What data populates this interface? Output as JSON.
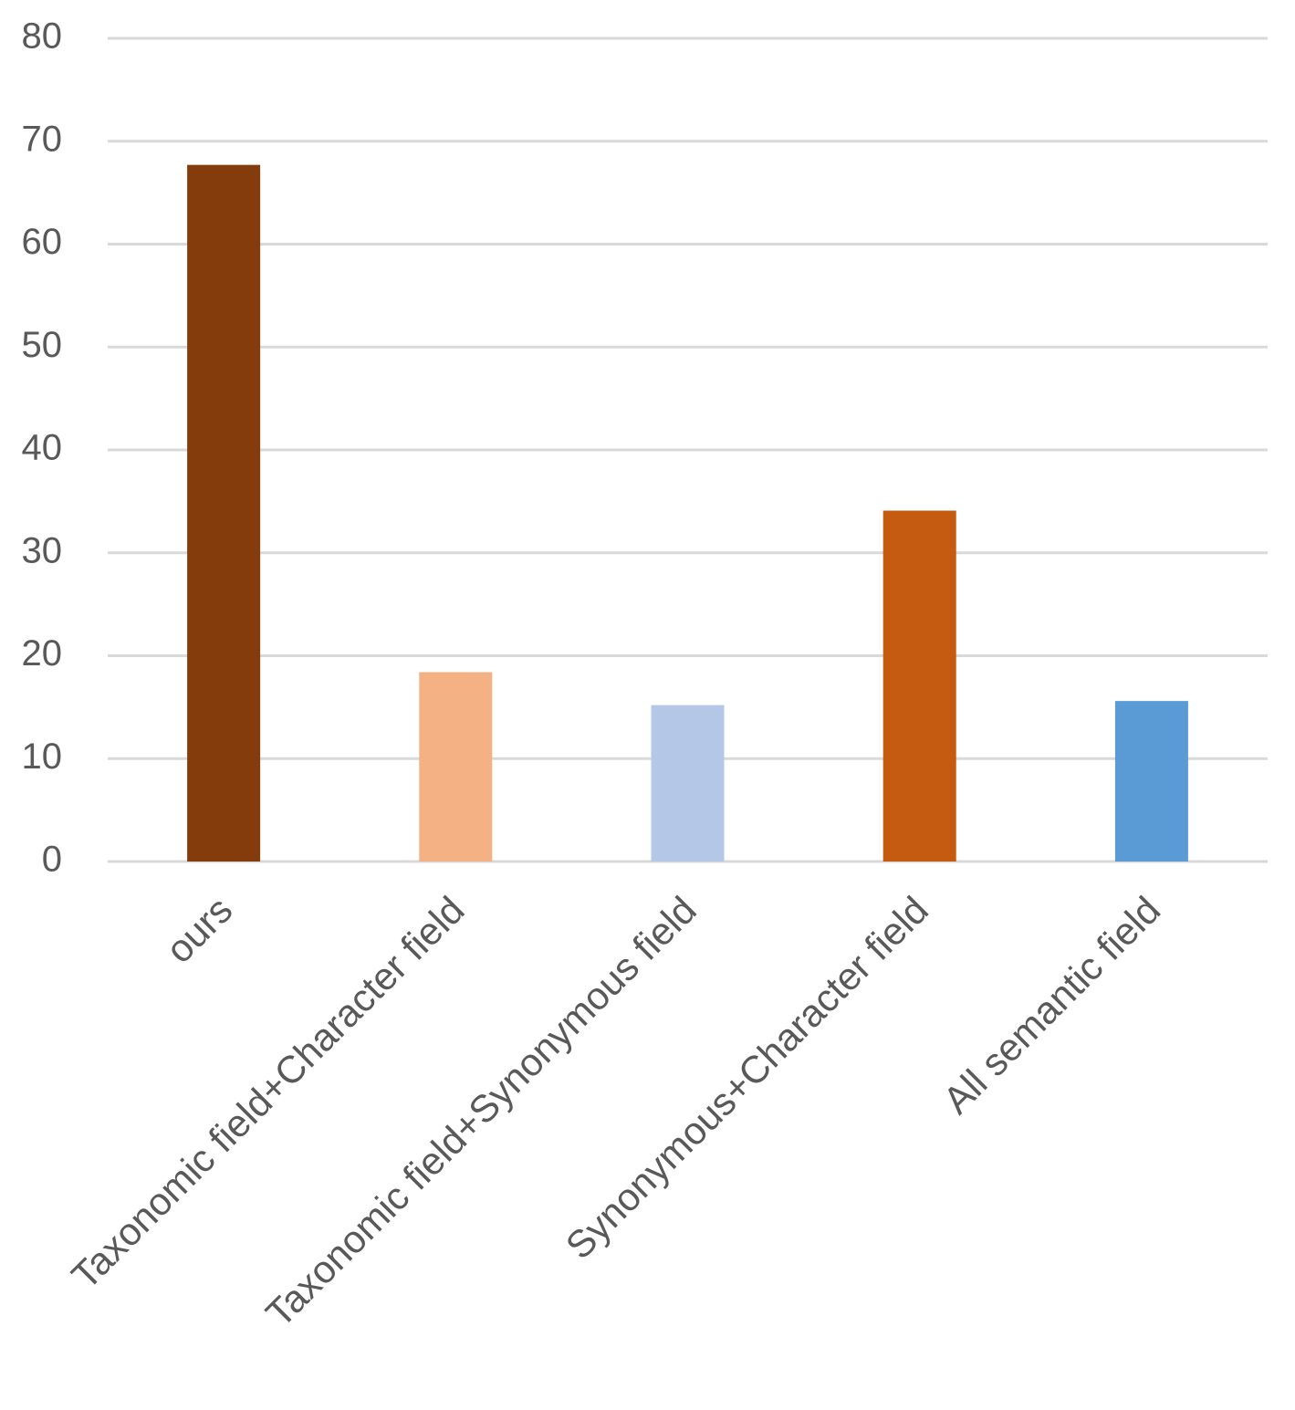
{
  "chart_data": {
    "type": "bar",
    "categories": [
      "ours",
      "Taxonomic field+Character field",
      "Taxonomic field+Synonymous field",
      "Synonymous+Character field",
      "All semantic field"
    ],
    "values": [
      67.7,
      18.4,
      15.2,
      34.1,
      15.6
    ],
    "colors": [
      "#843c0c",
      "#f4b183",
      "#b4c7e7",
      "#c55a11",
      "#5b9bd5"
    ],
    "ylim": [
      0,
      80
    ],
    "yticks": [
      0,
      10,
      20,
      30,
      40,
      50,
      60,
      70,
      80
    ],
    "grid": true
  }
}
